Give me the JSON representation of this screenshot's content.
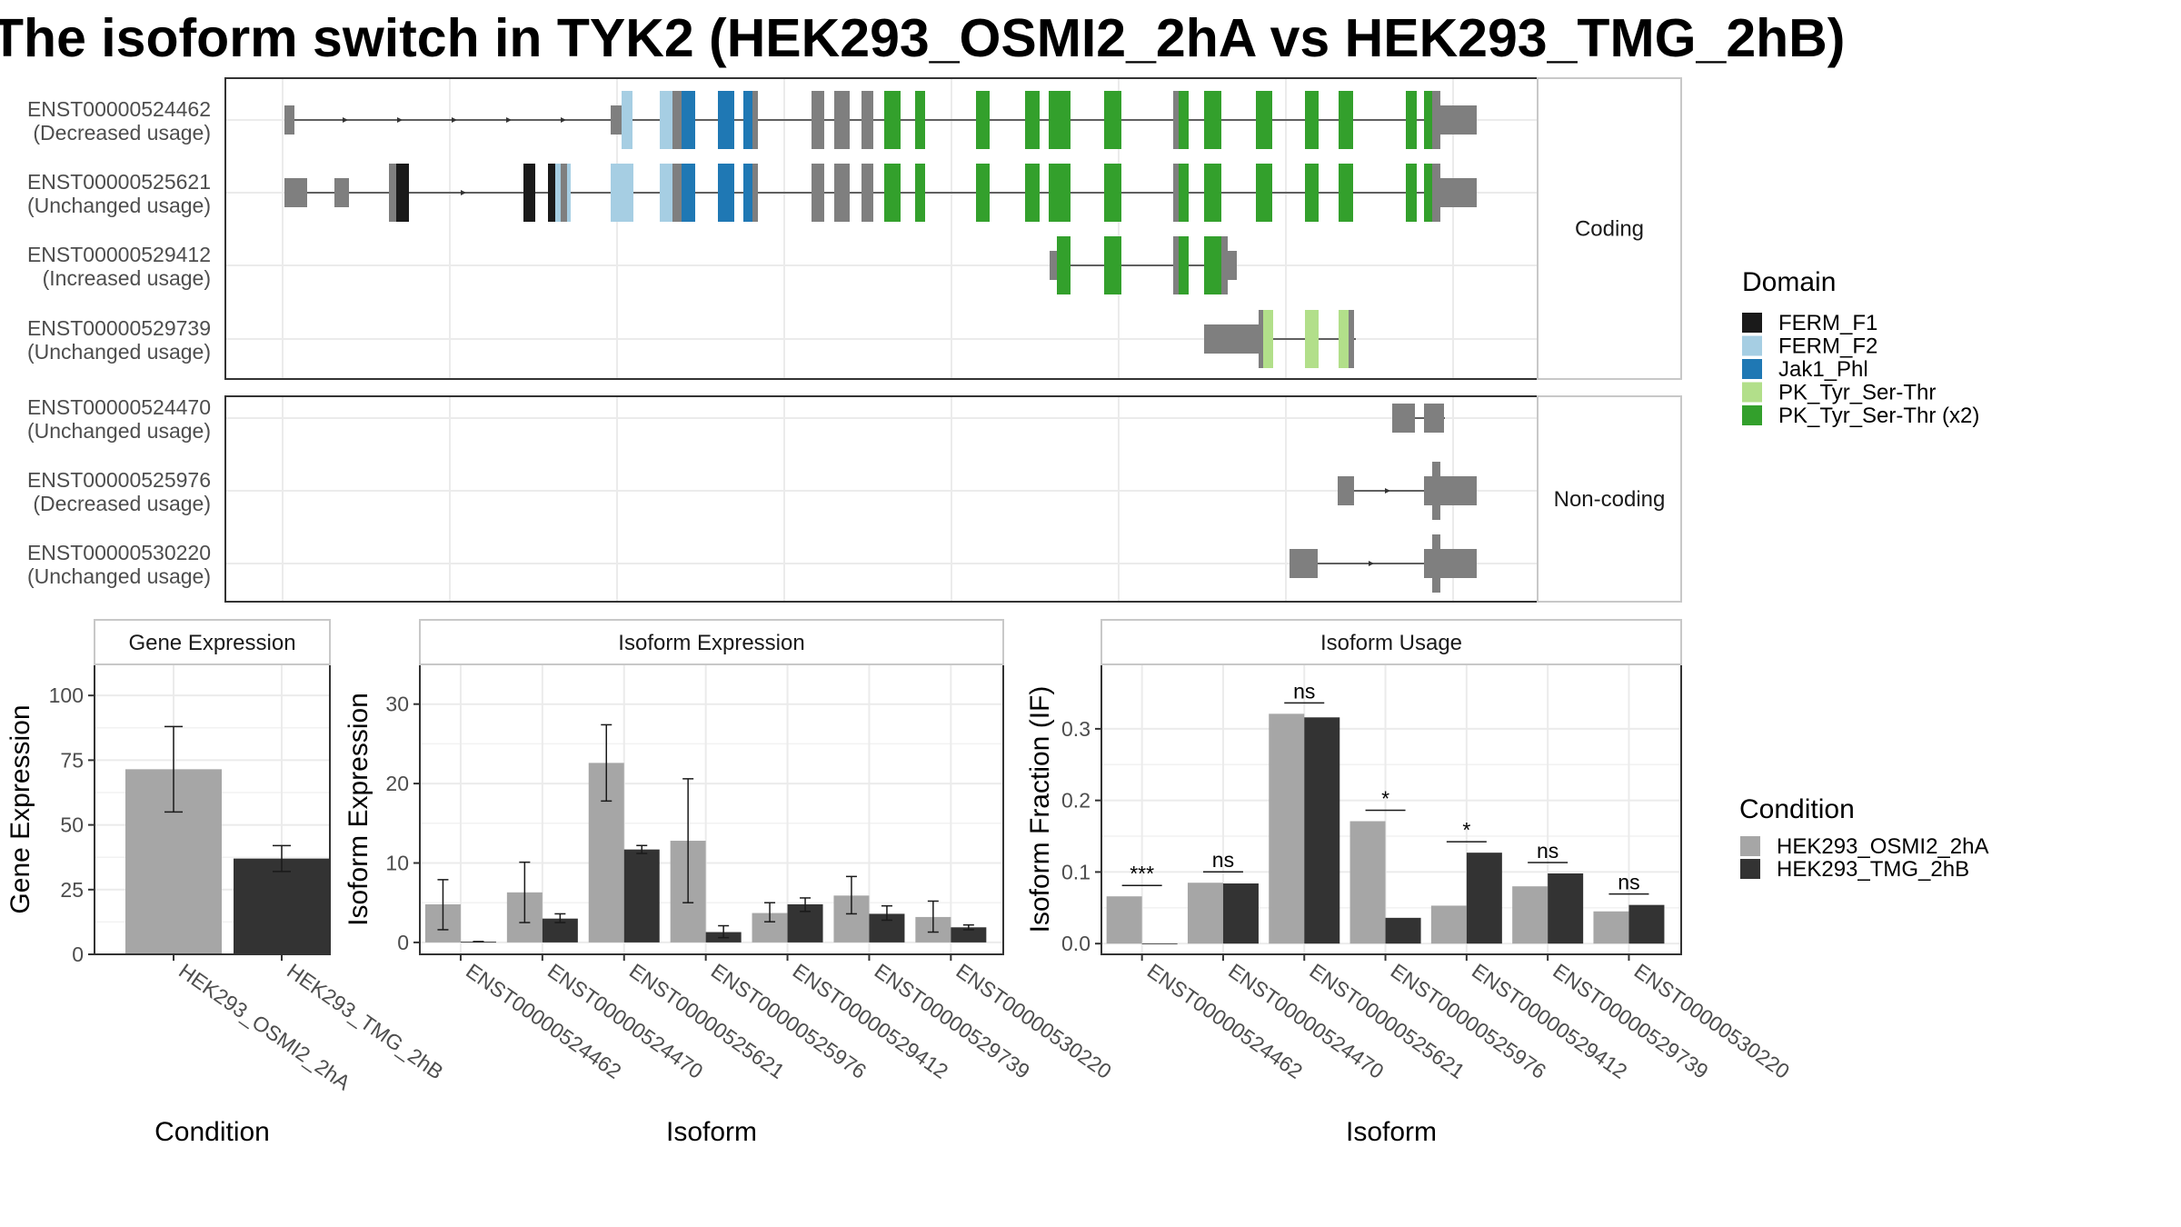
{
  "title": "The isoform switch in TYK2 (HEK293_OSMI2_2hA vs HEK293_TMG_2hB)",
  "colors": {
    "FERM_F1": "#1a1a1a",
    "FERM_F2": "#a6cee3",
    "Jak1_Phl": "#1f78b4",
    "PK_Tyr_Ser-Thr": "#b2df8a",
    "PK_Tyr_Ser-Thr (x2)": "#33a02c",
    "none": "#7f7f7f",
    "cond_A": "#a6a6a6",
    "cond_B": "#333333"
  },
  "structure": {
    "groups": [
      {
        "label": "Coding",
        "rows": [
          {
            "id": "ENST00000524462",
            "usage": "(Decreased usage)"
          },
          {
            "id": "ENST00000525621",
            "usage": "(Unchanged usage)"
          },
          {
            "id": "ENST00000529412",
            "usage": "(Increased usage)"
          },
          {
            "id": "ENST00000529739",
            "usage": "(Unchanged usage)"
          }
        ]
      },
      {
        "label": "Non-coding",
        "rows": [
          {
            "id": "ENST00000524470",
            "usage": "(Unchanged usage)"
          },
          {
            "id": "ENST00000525976",
            "usage": "(Decreased usage)"
          },
          {
            "id": "ENST00000530220",
            "usage": "(Unchanged usage)"
          }
        ]
      }
    ],
    "domain_legend": {
      "title": "Domain",
      "items": [
        "FERM_F1",
        "FERM_F2",
        "Jak1_Phl",
        "PK_Tyr_Ser-Thr",
        "PK_Tyr_Ser-Thr (x2)"
      ]
    }
  },
  "chart_data": [
    {
      "type": "bar",
      "title": "Gene Expression",
      "xlabel": "Condition",
      "ylabel": "Gene Expression",
      "categories": [
        "HEK293_OSMI2_2hA",
        "HEK293_TMG_2hB"
      ],
      "values": [
        71.5,
        37
      ],
      "error_low": [
        55,
        32
      ],
      "error_high": [
        88,
        42
      ],
      "ylim": [
        0,
        112
      ],
      "yticks": [
        0,
        25,
        50,
        75,
        100
      ]
    },
    {
      "type": "bar",
      "title": "Isoform Expression",
      "xlabel": "Isoform",
      "ylabel": "Isoform Expression",
      "categories": [
        "ENST00000524462",
        "ENST00000524470",
        "ENST00000525621",
        "ENST00000525976",
        "ENST00000529412",
        "ENST00000529739",
        "ENST00000530220"
      ],
      "series": [
        {
          "name": "HEK293_OSMI2_2hA",
          "values": [
            4.8,
            6.3,
            22.6,
            12.8,
            3.7,
            5.9,
            3.2
          ],
          "err_low": [
            1.6,
            2.5,
            17.8,
            5.0,
            2.6,
            3.6,
            1.3
          ],
          "err_high": [
            7.9,
            10.1,
            27.4,
            20.6,
            5.0,
            8.3,
            5.2
          ]
        },
        {
          "name": "HEK293_TMG_2hB",
          "values": [
            0.1,
            3.0,
            11.7,
            1.3,
            4.8,
            3.6,
            1.9
          ],
          "err_low": [
            0.1,
            2.5,
            11.2,
            0.6,
            3.9,
            2.8,
            1.6
          ],
          "err_high": [
            0.1,
            3.6,
            12.2,
            2.1,
            5.6,
            4.6,
            2.2
          ]
        }
      ],
      "ylim": [
        -1.5,
        35
      ],
      "yticks": [
        0,
        10,
        20,
        30
      ]
    },
    {
      "type": "bar",
      "title": "Isoform Usage",
      "xlabel": "Isoform",
      "ylabel": "Isoform Fraction (IF)",
      "categories": [
        "ENST00000524462",
        "ENST00000524470",
        "ENST00000525621",
        "ENST00000525976",
        "ENST00000529412",
        "ENST00000529739",
        "ENST00000530220"
      ],
      "series": [
        {
          "name": "HEK293_OSMI2_2hA",
          "values": [
            0.066,
            0.085,
            0.321,
            0.171,
            0.053,
            0.08,
            0.045
          ]
        },
        {
          "name": "HEK293_TMG_2hB",
          "values": [
            0.0,
            0.084,
            0.316,
            0.036,
            0.127,
            0.098,
            0.054
          ]
        }
      ],
      "significance": [
        "***",
        "ns",
        "ns",
        "*",
        "*",
        "ns",
        "ns"
      ],
      "ylim": [
        -0.015,
        0.39
      ],
      "yticks": [
        0.0,
        0.1,
        0.2,
        0.3
      ],
      "yticklabels": [
        "0.0",
        "0.1",
        "0.2",
        "0.3"
      ]
    }
  ],
  "condition_legend": {
    "title": "Condition",
    "items": [
      "HEK293_OSMI2_2hA",
      "HEK293_TMG_2hB"
    ]
  }
}
